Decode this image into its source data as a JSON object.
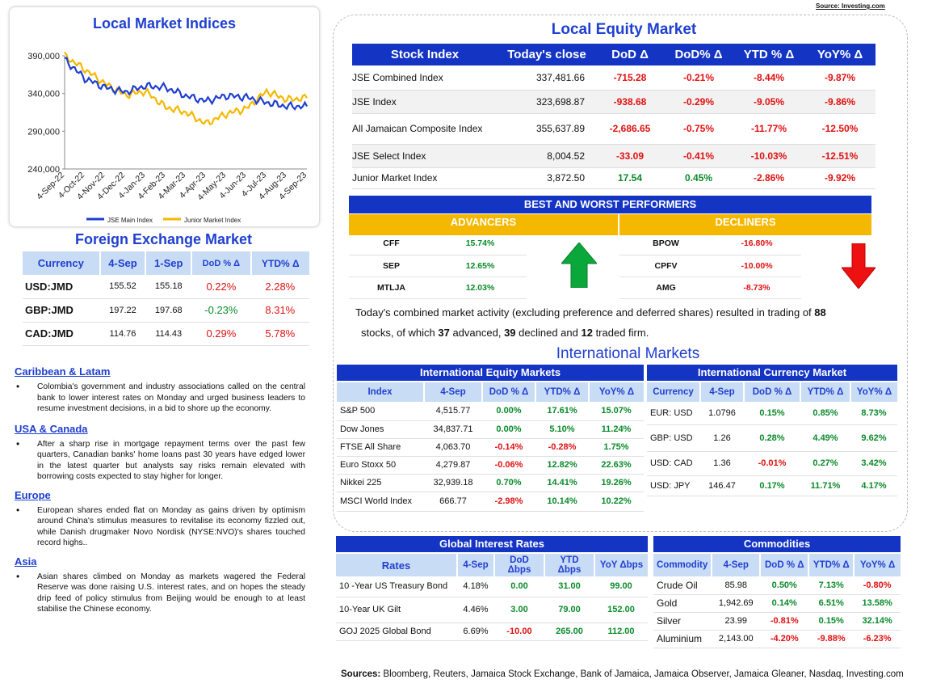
{
  "source_top": "Source: Investing.com",
  "local_indices": {
    "title": "Local Market Indices",
    "y_ticks": [
      "390,000",
      "340,000",
      "290,000",
      "240,000"
    ],
    "x_ticks": [
      "4-Sep-22",
      "4-Oct-22",
      "4-Nov-22",
      "4-Dec-22",
      "4-Jan-23",
      "4-Feb-23",
      "4-Mar-23",
      "4-Apr-23",
      "4-May-23",
      "4-Jun-23",
      "4-Jul-23",
      "4-Aug-23",
      "4-Sep-23"
    ],
    "legend": [
      "JSE Main Index",
      "Junior Market Index"
    ],
    "colors": {
      "main": "#1f3fd1",
      "junior": "#f5b800"
    }
  },
  "chart_data": {
    "type": "line",
    "title": "Local Market Indices",
    "ylim": [
      240000,
      390000
    ],
    "x": [
      "4-Sep-22",
      "4-Oct-22",
      "4-Nov-22",
      "4-Dec-22",
      "4-Jan-23",
      "4-Feb-23",
      "4-Mar-23",
      "4-Apr-23",
      "4-May-23",
      "4-Jun-23",
      "4-Jul-23",
      "4-Aug-23",
      "4-Sep-23"
    ],
    "series": [
      {
        "name": "JSE Main Index",
        "values": [
          385000,
          360000,
          348000,
          342000,
          350000,
          348000,
          337000,
          330000,
          337000,
          335000,
          328000,
          323000,
          323000
        ]
      },
      {
        "name": "Junior Market Index",
        "values": [
          390000,
          372000,
          353000,
          338000,
          343000,
          322000,
          315000,
          300000,
          313000,
          320000,
          343000,
          332000,
          334000
        ]
      }
    ]
  },
  "fx": {
    "title": "Foreign Exchange Market",
    "headers": [
      "Currency",
      "4-Sep",
      "1-Sep",
      "DoD % Δ",
      "YTD% Δ"
    ],
    "rows": [
      {
        "cur": "USD:JMD",
        "a": "155.52",
        "b": "155.18",
        "dod": "0.22%",
        "ytd": "2.28%",
        "dod_c": "neg",
        "ytd_c": "neg"
      },
      {
        "cur": "GBP:JMD",
        "a": "197.22",
        "b": "197.68",
        "dod": "-0.23%",
        "ytd": "8.31%",
        "dod_c": "pos",
        "ytd_c": "neg"
      },
      {
        "cur": "CAD:JMD",
        "a": "114.76",
        "b": "114.43",
        "dod": "0.29%",
        "ytd": "5.78%",
        "dod_c": "neg",
        "ytd_c": "neg"
      }
    ]
  },
  "news": [
    {
      "heading": "Caribbean & Latam",
      "text": "Colombia's government and industry associations called on the central bank to lower interest rates on Monday and urged business leaders to resume investment decisions, in a bid to shore up the economy."
    },
    {
      "heading": "USA & Canada",
      "text": "After a sharp rise in mortgage repayment terms over the past few quarters, Canadian banks' home loans past 30 years have edged lower in the latest quarter but analysts say risks remain elevated with borrowing costs expected to stay higher for longer."
    },
    {
      "heading": "Europe",
      "text": "European shares ended flat on Monday as gains driven by optimism around China's stimulus measures to revitalise its economy fizzled out, while Danish drugmaker Novo Nordisk (NYSE:NVO)'s shares touched record highs.."
    },
    {
      "heading": "Asia",
      "text": "Asian shares climbed on Monday as markets wagered the Federal Reserve was done raising U.S. interest rates, and on hopes the steady drip feed of policy stimulus from Beijing would be enough to at least stabilise the Chinese economy."
    }
  ],
  "equity": {
    "title": "Local Equity Market",
    "headers": [
      "Stock Index",
      "Today's close",
      "DoD  Δ",
      "DoD% Δ",
      "YTD % Δ",
      "YoY% Δ"
    ],
    "rows": [
      {
        "name": "JSE Combined Index",
        "close": "337,481.66",
        "dod": "-715.28",
        "dodp": "-0.21%",
        "ytd": "-8.44%",
        "yoy": "-9.87%",
        "c": [
          "neg",
          "neg",
          "neg",
          "neg"
        ]
      },
      {
        "name": "JSE Index",
        "close": "323,698.87",
        "dod": "-938.68",
        "dodp": "-0.29%",
        "ytd": "-9.05%",
        "yoy": "-9.86%",
        "c": [
          "neg",
          "neg",
          "neg",
          "neg"
        ]
      },
      {
        "name": "All Jamaican Composite Index",
        "close": "355,637.89",
        "dod": "-2,686.65",
        "dodp": "-0.75%",
        "ytd": "-11.77%",
        "yoy": "-12.50%",
        "c": [
          "neg",
          "neg",
          "neg",
          "neg"
        ]
      },
      {
        "name": "JSE Select Index",
        "close": "8,004.52",
        "dod": "-33.09",
        "dodp": "-0.41%",
        "ytd": "-10.03%",
        "yoy": "-12.51%",
        "c": [
          "neg",
          "neg",
          "neg",
          "neg"
        ]
      },
      {
        "name": "Junior Market Index",
        "close": "3,872.50",
        "dod": "17.54",
        "dodp": "0.45%",
        "ytd": "-2.86%",
        "yoy": "-9.92%",
        "c": [
          "pos",
          "pos",
          "neg",
          "neg"
        ]
      }
    ]
  },
  "performers": {
    "title": "BEST AND WORST PERFORMERS",
    "advancers_label": "ADVANCERS",
    "decliners_label": "DECLINERS",
    "advancers": [
      {
        "sym": "CFF",
        "pct": "15.74%"
      },
      {
        "sym": "SEP",
        "pct": "12.65%"
      },
      {
        "sym": "MTLJA",
        "pct": "12.03%"
      }
    ],
    "decliners": [
      {
        "sym": "BPOW",
        "pct": "-16.80%"
      },
      {
        "sym": "CPFV",
        "pct": "-10.00%"
      },
      {
        "sym": "AMG",
        "pct": "-8.73%"
      }
    ]
  },
  "summary": {
    "p1": "Today's combined market activity (excluding preference and deferred shares) resulted in trading of ",
    "n1": "88",
    "p2": "stocks, of which ",
    "n2": "37",
    "p3": " advanced, ",
    "n3": "39",
    "p4": " declined and ",
    "n4": "12",
    "p5": " traded firm."
  },
  "intl_title": "International Markets",
  "intl_equity": {
    "title": "International Equity Markets",
    "headers": [
      "Index",
      "4-Sep",
      "DoD % Δ",
      "YTD% Δ",
      "YoY% Δ"
    ],
    "rows": [
      {
        "name": "S&P 500",
        "v": "4,515.77",
        "dod": "0.00%",
        "ytd": "17.61%",
        "yoy": "15.07%",
        "c": [
          "pos",
          "pos",
          "pos"
        ]
      },
      {
        "name": "Dow Jones",
        "v": "34,837.71",
        "dod": "0.00%",
        "ytd": "5.10%",
        "yoy": "11.24%",
        "c": [
          "pos",
          "pos",
          "pos"
        ]
      },
      {
        "name": "FTSE All Share",
        "v": "4,063.70",
        "dod": "-0.14%",
        "ytd": "-0.28%",
        "yoy": "1.75%",
        "c": [
          "neg",
          "neg",
          "pos"
        ]
      },
      {
        "name": "Euro Stoxx 50",
        "v": "4,279.87",
        "dod": "-0.06%",
        "ytd": "12.82%",
        "yoy": "22.63%",
        "c": [
          "neg",
          "pos",
          "pos"
        ]
      },
      {
        "name": "Nikkei 225",
        "v": "32,939.18",
        "dod": "0.70%",
        "ytd": "14.41%",
        "yoy": "19.26%",
        "c": [
          "pos",
          "pos",
          "pos"
        ]
      },
      {
        "name": "MSCI World Index",
        "v": "666.77",
        "dod": "-2.98%",
        "ytd": "10.14%",
        "yoy": "10.22%",
        "c": [
          "neg",
          "pos",
          "pos"
        ]
      }
    ]
  },
  "intl_fx": {
    "title": "International Currency Market",
    "headers": [
      "Currency",
      "4-Sep",
      "DoD % Δ",
      "YTD% Δ",
      "YoY% Δ"
    ],
    "rows": [
      {
        "name": "EUR: USD",
        "v": "1.0796",
        "dod": "0.15%",
        "ytd": "0.85%",
        "yoy": "8.73%",
        "c": [
          "pos",
          "pos",
          "pos"
        ]
      },
      {
        "name": "GBP: USD",
        "v": "1.26",
        "dod": "0.28%",
        "ytd": "4.49%",
        "yoy": "9.62%",
        "c": [
          "pos",
          "pos",
          "pos"
        ]
      },
      {
        "name": "USD: CAD",
        "v": "1.36",
        "dod": "-0.01%",
        "ytd": "0.27%",
        "yoy": "3.42%",
        "c": [
          "neg",
          "pos",
          "pos"
        ]
      },
      {
        "name": "USD: JPY",
        "v": "146.47",
        "dod": "0.17%",
        "ytd": "11.71%",
        "yoy": "4.17%",
        "c": [
          "pos",
          "pos",
          "pos"
        ]
      }
    ]
  },
  "rates": {
    "title": "Global Interest Rates",
    "headers": [
      "Rates",
      "4-Sep",
      "DoD Δbps",
      "YTD Δbps",
      "YoY Δbps"
    ],
    "rows": [
      {
        "name": "10 -Year US Treasury Bond",
        "v": "4.18%",
        "dod": "0.00",
        "ytd": "31.00",
        "yoy": "99.00",
        "c": [
          "pos",
          "pos",
          "pos"
        ]
      },
      {
        "name": "10-Year UK Gilt",
        "v": "4.46%",
        "dod": "3.00",
        "ytd": "79.00",
        "yoy": "152.00",
        "c": [
          "pos",
          "pos",
          "pos"
        ]
      },
      {
        "name": "GOJ 2025 Global Bond",
        "v": "6.69%",
        "dod": "-10.00",
        "ytd": "265.00",
        "yoy": "112.00",
        "c": [
          "neg",
          "pos",
          "pos"
        ]
      }
    ]
  },
  "commod": {
    "title": "Commodities",
    "headers": [
      "Commodity",
      "4-Sep",
      "DoD % Δ",
      "YTD% Δ",
      "YoY% Δ"
    ],
    "rows": [
      {
        "name": "Crude Oil",
        "v": "85.98",
        "dod": "0.50%",
        "ytd": "7.13%",
        "yoy": "-0.80%",
        "c": [
          "pos",
          "pos",
          "neg"
        ]
      },
      {
        "name": "Gold",
        "v": "1,942.69",
        "dod": "0.14%",
        "ytd": "6.51%",
        "yoy": "13.58%",
        "c": [
          "pos",
          "pos",
          "pos"
        ]
      },
      {
        "name": "Silver",
        "v": "23.99",
        "dod": "-0.81%",
        "ytd": "0.15%",
        "yoy": "32.14%",
        "c": [
          "neg",
          "pos",
          "pos"
        ]
      },
      {
        "name": "Aluminium",
        "v": "2,143.00",
        "dod": "-4.20%",
        "ytd": "-9.88%",
        "yoy": "-6.23%",
        "c": [
          "neg",
          "neg",
          "neg"
        ]
      }
    ]
  },
  "sources": {
    "label": "Sources:",
    "text": " Bloomberg, Reuters, Jamaica Stock Exchange, Bank of Jamaica, Jamaica Observer, Jamaica Gleaner, Nasdaq, Investing.com"
  }
}
